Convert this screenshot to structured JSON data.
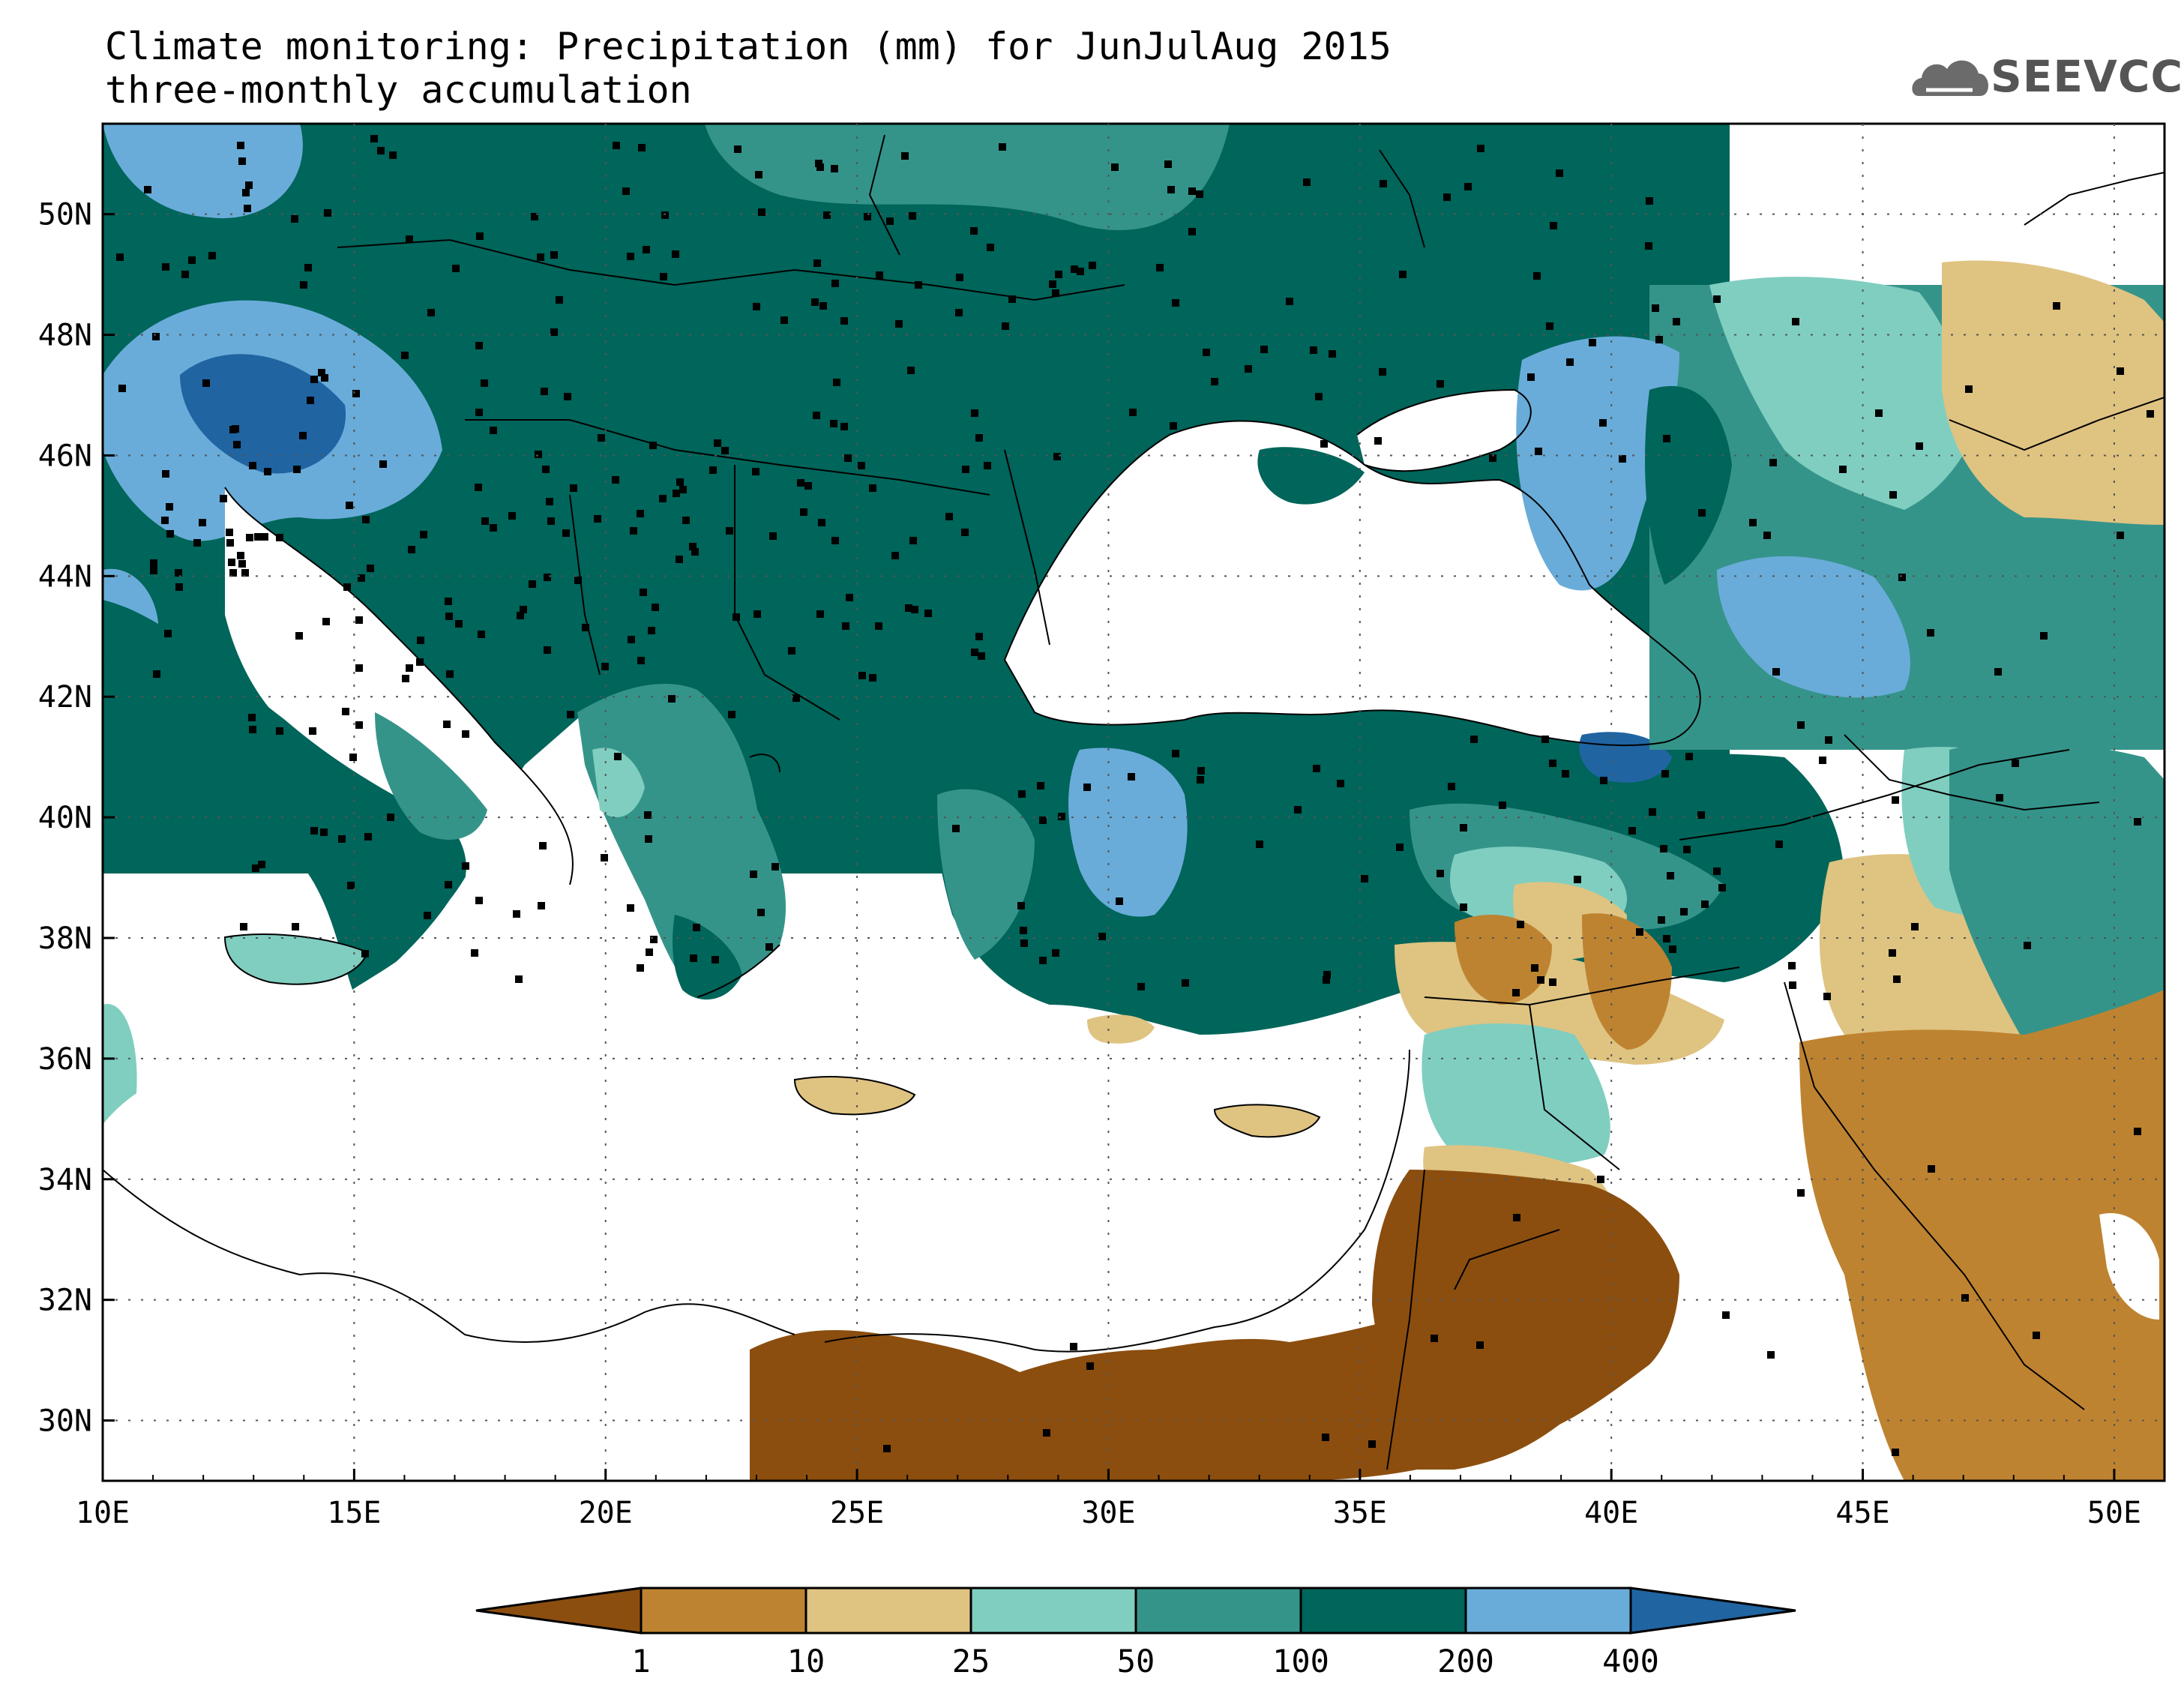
{
  "header": {
    "title_line1": "Climate monitoring: Precipitation (mm) for JunJulAug 2015",
    "title_line2": "three-monthly accumulation",
    "logo_text": "SEEVCCC"
  },
  "map": {
    "lon_range": [
      10,
      51
    ],
    "lat_range": [
      29,
      51.5
    ],
    "lon_ticks": [
      "10E",
      "15E",
      "20E",
      "25E",
      "30E",
      "35E",
      "40E",
      "45E",
      "50E"
    ],
    "lat_ticks": [
      "50N",
      "48N",
      "46N",
      "44N",
      "42N",
      "40N",
      "38N",
      "36N",
      "34N",
      "32N",
      "30N"
    ],
    "gridlines": "dotted"
  },
  "colorbar": {
    "labels": [
      "1",
      "10",
      "25",
      "50",
      "100",
      "200",
      "400"
    ],
    "colors": [
      "#8b4e0f",
      "#be8331",
      "#dfc381",
      "#80cec0",
      "#35948a",
      "#00655a",
      "#69acd9",
      "#2064a2"
    ],
    "units": "mm"
  }
}
